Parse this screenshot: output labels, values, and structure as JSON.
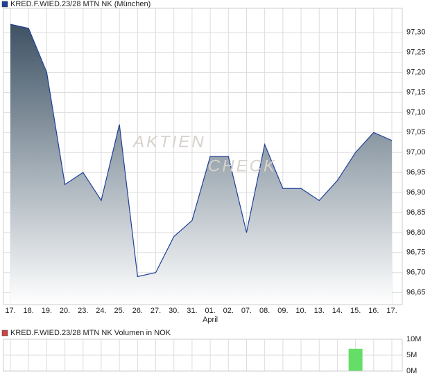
{
  "chart_data": [
    {
      "type": "area",
      "legend": "KRED.F.WIED.23/28 MTN NK (München)",
      "color": "#1f3f99",
      "legend_color": "#1f3f99",
      "watermark": [
        "AKTIEN",
        "CHECK"
      ],
      "categories": [
        "17.",
        "18.",
        "19.",
        "20.",
        "23.",
        "24.",
        "25.",
        "26.",
        "27.",
        "30.",
        "31.",
        "01.",
        "02.",
        "07.",
        "08.",
        "09.",
        "10.",
        "13.",
        "14.",
        "15.",
        "16.",
        "17."
      ],
      "month_label": {
        "text": "April",
        "at": "01."
      },
      "values": [
        97.32,
        97.31,
        97.2,
        96.92,
        96.95,
        96.88,
        97.07,
        96.69,
        96.7,
        96.79,
        96.83,
        96.99,
        96.99,
        96.8,
        97.02,
        96.91,
        96.91,
        96.88,
        96.93,
        97.0,
        97.05,
        97.03
      ],
      "ylim": [
        96.62,
        97.36
      ],
      "yticks": [
        {
          "value": 96.65,
          "label": "96,65"
        },
        {
          "value": 96.7,
          "label": "96,70"
        },
        {
          "value": 96.75,
          "label": "96,75"
        },
        {
          "value": 96.8,
          "label": "96,80"
        },
        {
          "value": 96.85,
          "label": "96,85"
        },
        {
          "value": 96.9,
          "label": "96,90"
        },
        {
          "value": 96.95,
          "label": "96,95"
        },
        {
          "value": 97.0,
          "label": "97,00"
        },
        {
          "value": 97.05,
          "label": "97,05"
        },
        {
          "value": 97.1,
          "label": "97,10"
        },
        {
          "value": 97.15,
          "label": "97,15"
        },
        {
          "value": 97.2,
          "label": "97,20"
        },
        {
          "value": 97.25,
          "label": "97,25"
        },
        {
          "value": 97.3,
          "label": "97,30"
        }
      ],
      "grid": true
    },
    {
      "type": "bar",
      "legend": "KRED.F.WIED.23/28 MTN NK Volumen in NOK",
      "color": "#66dd66",
      "legend_color": "#cc4444",
      "values": [
        0,
        0,
        0,
        0,
        0,
        0,
        0,
        0,
        0,
        0,
        0,
        0,
        0,
        0,
        0,
        0,
        0,
        0,
        0,
        7000000,
        0,
        0
      ],
      "ylim": [
        0,
        10000000
      ],
      "yticks": [
        {
          "value": 0,
          "label": "0M"
        },
        {
          "value": 5000000,
          "label": "5M"
        },
        {
          "value": 10000000,
          "label": "10M"
        }
      ],
      "grid": true
    }
  ]
}
